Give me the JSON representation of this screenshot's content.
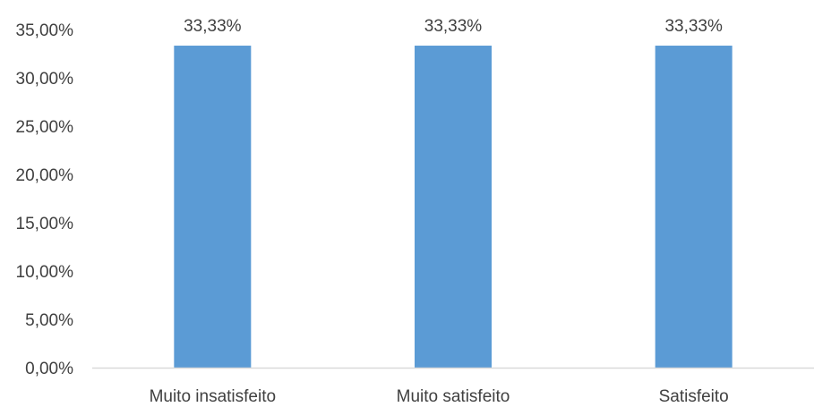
{
  "chart_data": {
    "type": "bar",
    "categories": [
      "Muito insatisfeito",
      "Muito satisfeito",
      "Satisfeito"
    ],
    "values": [
      33.33,
      33.33,
      33.33
    ],
    "value_labels": [
      "33,33%",
      "33,33%",
      "33,33%"
    ],
    "ylim": [
      0,
      35
    ],
    "yticks": [
      0,
      5,
      10,
      15,
      20,
      25,
      30,
      35
    ],
    "ytick_labels": [
      "0,00%",
      "5,00%",
      "10,00%",
      "15,00%",
      "20,00%",
      "25,00%",
      "30,00%",
      "35,00%"
    ],
    "grid": false,
    "legend": "none",
    "bar_color": "#5b9bd5",
    "axis_color": "#d9d9d9",
    "text_color": "#404040"
  }
}
